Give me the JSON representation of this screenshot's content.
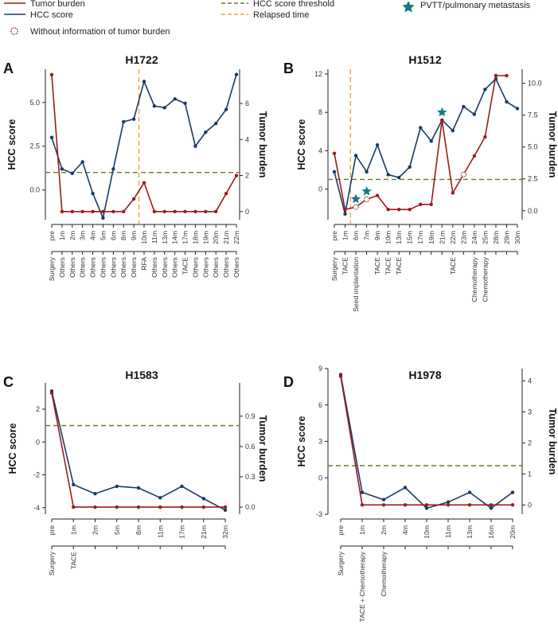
{
  "legend": {
    "tumor_burden": "Tumor burden",
    "hcc_score": "HCC score",
    "without_info": "Without information of tumor burden",
    "threshold": "HCC score threshold",
    "relapsed": "Relapsed time",
    "pvtt": "PVTT/pulmonary metastasis"
  },
  "colors": {
    "tumor": "#9b1c1c",
    "hcc": "#183a64",
    "threshold": "#6b7a2a",
    "relapsed": "#e8a33a",
    "star": "#137a86"
  },
  "chart_data": [
    {
      "type": "line",
      "panel": "A",
      "title": "H1722",
      "ylabel": "HCC score",
      "y2label": "Tumor burden",
      "ylim": [
        -1.7,
        6.9
      ],
      "y2lim": [
        -0.45,
        7.9
      ],
      "yticks": [
        0.0,
        2.5,
        5.0
      ],
      "yticks_labels": [
        "0.0",
        "2.5",
        "5.0"
      ],
      "y2ticks": [
        0,
        2,
        4,
        6
      ],
      "y2ticks_labels": [
        "0",
        "2",
        "4",
        "6"
      ],
      "threshold": 1.0,
      "relapse_index": 8.5,
      "x": [
        "pre",
        "1m",
        "2m",
        "3m",
        "4m",
        "5m",
        "6m",
        "8m",
        "9m",
        "10m",
        "11m",
        "13m",
        "14m",
        "17m",
        "18m",
        "19m",
        "20m",
        "21m",
        "22m"
      ],
      "treatments": [
        "Surgery",
        "Others",
        "Others",
        "Others",
        "Others",
        "Others",
        "Others",
        "Others",
        "Others",
        "RFA",
        "Others",
        "Others",
        "Others",
        "TACE",
        "Others",
        "Others",
        "Others",
        "Others",
        "Others"
      ],
      "hcc_score": [
        3.0,
        1.2,
        0.95,
        1.6,
        -0.2,
        -1.6,
        1.2,
        3.9,
        4.05,
        6.2,
        4.8,
        4.7,
        5.2,
        4.95,
        2.5,
        3.3,
        3.8,
        4.6,
        6.6
      ],
      "tumor_burden": [
        7.6,
        0,
        0,
        0,
        0,
        0,
        0,
        0,
        0.7,
        1.6,
        0,
        0,
        0,
        0,
        0,
        0,
        0,
        1.0,
        2.0
      ],
      "no_info_indices": [],
      "stars": []
    },
    {
      "type": "line",
      "panel": "B",
      "title": "H1512",
      "ylabel": "HCC score",
      "y2label": "Tumor burden",
      "ylim": [
        -3.2,
        12.5
      ],
      "y2lim": [
        -0.7,
        11.1
      ],
      "yticks": [
        0,
        4,
        8,
        12
      ],
      "yticks_labels": [
        "0",
        "4",
        "8",
        "12"
      ],
      "y2ticks": [
        0.0,
        2.5,
        5.0,
        7.5,
        10.0
      ],
      "y2ticks_labels": [
        "0.0",
        "2.5",
        "5.0",
        "7.5",
        "10.0"
      ],
      "threshold": 1.0,
      "relapse_index": 1.5,
      "x": [
        "pre",
        "1m",
        "6m",
        "7m",
        "9m",
        "10m",
        "13m",
        "15m",
        "17m",
        "19m",
        "21m",
        "22m",
        "23m",
        "24m",
        "25m",
        "28m",
        "29m",
        "30m"
      ],
      "treatments": [
        "Surgery",
        "TACE",
        "Seed implantation",
        "",
        "TACE",
        "TACE",
        "TACE",
        "",
        "",
        "",
        "",
        "TACE",
        "",
        "Chemotherapy",
        "Chemotherapy",
        "",
        "",
        ""
      ],
      "hcc_score": [
        1.8,
        -2.6,
        3.5,
        1.8,
        4.6,
        1.5,
        1.2,
        2.3,
        6.4,
        5.0,
        7.2,
        6.1,
        8.6,
        7.8,
        10.4,
        11.5,
        9.1,
        8.4
      ],
      "tumor_burden": [
        4.5,
        0.1,
        0.3,
        0.9,
        1.2,
        0.1,
        0.1,
        0.1,
        0.5,
        0.5,
        7.1,
        1.4,
        null,
        4.3,
        5.8,
        10.6,
        10.6,
        null
      ],
      "no_info_indices": [
        2,
        3,
        12
      ],
      "stars": [
        2,
        3,
        10
      ]
    },
    {
      "type": "line",
      "panel": "C",
      "title": "H1583",
      "ylabel": "HCC score",
      "y2label": "Tumor burden",
      "ylim": [
        -4.4,
        3.6
      ],
      "y2lim": [
        -0.07,
        1.23
      ],
      "yticks": [
        -4,
        -2,
        0,
        2
      ],
      "yticks_labels": [
        "-4",
        "-2",
        "0",
        "2"
      ],
      "y2ticks": [
        0.0,
        0.3,
        0.6,
        0.9
      ],
      "y2ticks_labels": [
        "0.0",
        "0.3",
        "0.6",
        "0.9"
      ],
      "threshold": 1.0,
      "relapse_index": null,
      "x": [
        "pre",
        "1m",
        "2m",
        "5m",
        "8m",
        "11m",
        "17m",
        "21m",
        "32m"
      ],
      "treatments": [
        "Surgery",
        "TACE",
        "",
        "",
        "",
        "",
        "",
        "",
        ""
      ],
      "hcc_score": [
        3.1,
        -2.6,
        -3.15,
        -2.7,
        -2.8,
        -3.4,
        -2.7,
        -3.45,
        -4.15
      ],
      "tumor_burden": [
        1.13,
        0,
        0,
        0,
        0,
        0,
        0,
        0,
        0
      ],
      "no_info_indices": [],
      "stars": []
    },
    {
      "type": "line",
      "panel": "D",
      "title": "H1978",
      "ylabel": "HCC score",
      "y2label": "Tumor burden",
      "ylim": [
        -3.0,
        9.0
      ],
      "y2lim": [
        -0.3,
        4.4
      ],
      "yticks": [
        -3,
        0,
        3,
        6,
        9
      ],
      "yticks_labels": [
        "-3",
        "0",
        "3",
        "6",
        "9"
      ],
      "y2ticks": [
        0,
        1,
        2,
        3,
        4
      ],
      "y2ticks_labels": [
        "0",
        "1",
        "2",
        "3",
        "4"
      ],
      "threshold": 1.0,
      "relapse_index": null,
      "x": [
        "pre",
        "1m",
        "2m",
        "4m",
        "10m",
        "11m",
        "13m",
        "16m",
        "20m"
      ],
      "treatments": [
        "Surgery",
        "TACE + Chemotherapy",
        "Chemotherapy",
        "",
        "",
        "",
        "",
        "",
        ""
      ],
      "hcc_score": [
        8.5,
        -1.2,
        -1.8,
        -0.8,
        -2.5,
        -2.0,
        -1.2,
        -2.5,
        -1.2
      ],
      "tumor_burden": [
        4.15,
        0,
        0,
        0,
        0,
        0,
        0,
        0,
        0
      ],
      "no_info_indices": [],
      "stars": []
    }
  ]
}
